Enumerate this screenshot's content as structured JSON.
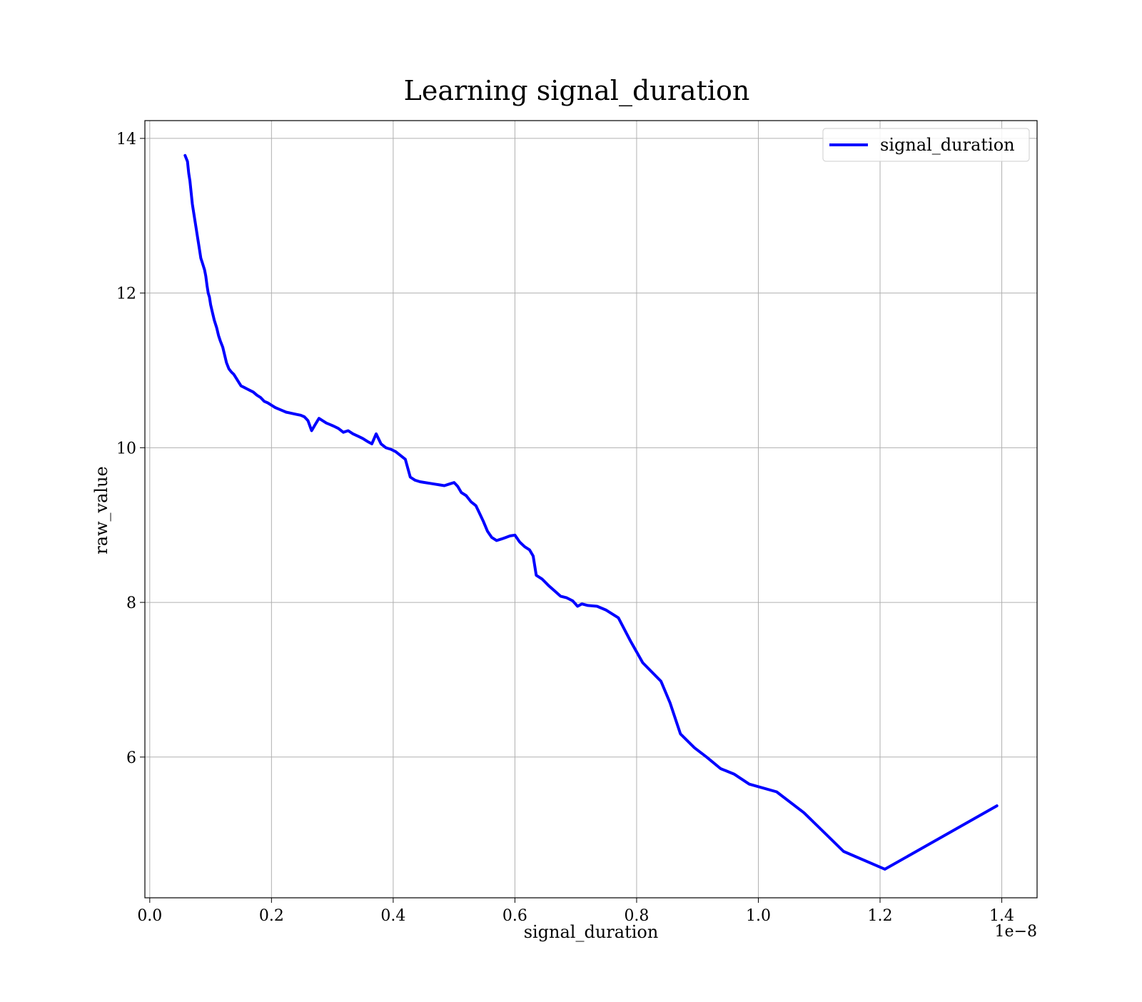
{
  "chart_data": {
    "type": "line",
    "title": "Learning signal_duration",
    "xlabel": "signal_duration",
    "ylabel": "raw_value",
    "x_offset_text": "1e−8",
    "xlim": [
      -0.008,
      1.458
    ],
    "ylim": [
      4.18,
      14.23
    ],
    "x_ticks": [
      0.0,
      0.2,
      0.4,
      0.6,
      0.8,
      1.0,
      1.2,
      1.4
    ],
    "x_tick_labels": [
      "0.0",
      "0.2",
      "0.4",
      "0.6",
      "0.8",
      "1.0",
      "1.2",
      "1.4"
    ],
    "y_ticks": [
      6,
      8,
      10,
      12,
      14
    ],
    "y_tick_labels": [
      "6",
      "8",
      "10",
      "12",
      "14"
    ],
    "grid": true,
    "legend_position": "upper-right",
    "color": "#0000ff",
    "series": [
      {
        "name": "signal_duration",
        "color": "#0000ff",
        "x": [
          0.058,
          0.062,
          0.064,
          0.066,
          0.068,
          0.07,
          0.072,
          0.074,
          0.076,
          0.078,
          0.08,
          0.082,
          0.084,
          0.086,
          0.088,
          0.09,
          0.092,
          0.094,
          0.096,
          0.098,
          0.1,
          0.103,
          0.106,
          0.11,
          0.113,
          0.116,
          0.12,
          0.123,
          0.126,
          0.13,
          0.134,
          0.138,
          0.142,
          0.146,
          0.15,
          0.155,
          0.16,
          0.165,
          0.17,
          0.176,
          0.182,
          0.188,
          0.194,
          0.2,
          0.206,
          0.212,
          0.218,
          0.224,
          0.23,
          0.236,
          0.242,
          0.248,
          0.254,
          0.26,
          0.266,
          0.272,
          0.278,
          0.284,
          0.29,
          0.296,
          0.302,
          0.31,
          0.318,
          0.326,
          0.334,
          0.342,
          0.35,
          0.358,
          0.365,
          0.372,
          0.38,
          0.388,
          0.396,
          0.404,
          0.412,
          0.42,
          0.428,
          0.436,
          0.444,
          0.452,
          0.46,
          0.468,
          0.476,
          0.484,
          0.492,
          0.5,
          0.506,
          0.512,
          0.52,
          0.528,
          0.536,
          0.542,
          0.548,
          0.555,
          0.562,
          0.57,
          0.578,
          0.585,
          0.592,
          0.6,
          0.608,
          0.616,
          0.624,
          0.63,
          0.635,
          0.645,
          0.655,
          0.665,
          0.675,
          0.685,
          0.695,
          0.703,
          0.71,
          0.72,
          0.735,
          0.75,
          0.77,
          0.79,
          0.81,
          0.825,
          0.84,
          0.855,
          0.872,
          0.895,
          0.915,
          0.938,
          0.96,
          0.985,
          1.03,
          1.075,
          1.14,
          1.208,
          1.392
        ],
        "y": [
          13.78,
          13.7,
          13.55,
          13.45,
          13.3,
          13.15,
          13.05,
          12.95,
          12.85,
          12.75,
          12.65,
          12.55,
          12.45,
          12.4,
          12.35,
          12.3,
          12.22,
          12.1,
          12.0,
          11.95,
          11.85,
          11.75,
          11.65,
          11.55,
          11.45,
          11.38,
          11.3,
          11.2,
          11.1,
          11.02,
          10.98,
          10.95,
          10.9,
          10.85,
          10.8,
          10.78,
          10.76,
          10.74,
          10.72,
          10.68,
          10.65,
          10.6,
          10.58,
          10.55,
          10.52,
          10.5,
          10.48,
          10.46,
          10.45,
          10.44,
          10.43,
          10.42,
          10.4,
          10.35,
          10.22,
          10.3,
          10.38,
          10.35,
          10.32,
          10.3,
          10.28,
          10.25,
          10.2,
          10.22,
          10.18,
          10.15,
          10.12,
          10.08,
          10.05,
          10.18,
          10.05,
          10.0,
          9.98,
          9.95,
          9.9,
          9.85,
          9.62,
          9.58,
          9.56,
          9.55,
          9.54,
          9.53,
          9.52,
          9.51,
          9.53,
          9.55,
          9.5,
          9.42,
          9.38,
          9.3,
          9.25,
          9.15,
          9.05,
          8.92,
          8.84,
          8.8,
          8.82,
          8.84,
          8.86,
          8.87,
          8.78,
          8.72,
          8.68,
          8.6,
          8.35,
          8.3,
          8.22,
          8.15,
          8.08,
          8.06,
          8.02,
          7.95,
          7.98,
          7.96,
          7.95,
          7.9,
          7.8,
          7.5,
          7.22,
          7.1,
          6.98,
          6.7,
          6.3,
          6.12,
          6.0,
          5.85,
          5.78,
          5.65,
          5.55,
          5.28,
          4.78,
          4.55,
          5.37
        ]
      }
    ]
  }
}
